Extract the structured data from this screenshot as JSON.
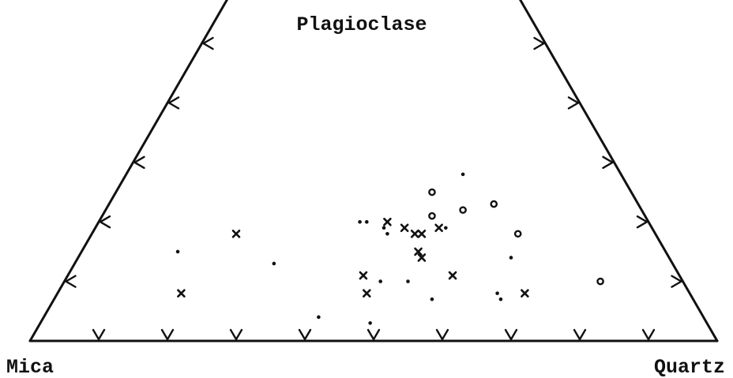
{
  "chart_data": {
    "type": "scatter",
    "subtype": "ternary-truncated",
    "vertex_labels": {
      "top": "Plagioclase",
      "bottom_left": "Mica",
      "bottom_right": "Quartz"
    },
    "apex_truncated": true,
    "ticks_per_edge": {
      "bottom": 9,
      "left": 6,
      "right": 6
    },
    "tick_style": "arrowhead",
    "grid": false,
    "legend": "none",
    "axis_range_fraction": [
      0,
      1
    ],
    "top_fraction_shown": 0.6,
    "note_units": "points given as fractions (plagioclase, quartz) of the full ternary",
    "series": [
      {
        "marker": "x",
        "points": [
          {
            "plag": 0.18,
            "quartz": 0.21
          },
          {
            "plag": 0.08,
            "quartz": 0.18
          },
          {
            "plag": 0.2,
            "quartz": 0.42
          },
          {
            "plag": 0.19,
            "quartz": 0.45
          },
          {
            "plag": 0.18,
            "quartz": 0.47
          },
          {
            "plag": 0.18,
            "quartz": 0.48
          },
          {
            "plag": 0.19,
            "quartz": 0.5
          },
          {
            "plag": 0.15,
            "quartz": 0.49
          },
          {
            "plag": 0.14,
            "quartz": 0.5
          },
          {
            "plag": 0.11,
            "quartz": 0.43
          },
          {
            "plag": 0.08,
            "quartz": 0.45
          },
          {
            "plag": 0.11,
            "quartz": 0.56
          },
          {
            "plag": 0.08,
            "quartz": 0.68
          }
        ]
      },
      {
        "marker": "dot",
        "points": [
          {
            "plag": 0.15,
            "quartz": 0.14
          },
          {
            "plag": 0.13,
            "quartz": 0.29
          },
          {
            "plag": 0.2,
            "quartz": 0.38
          },
          {
            "plag": 0.2,
            "quartz": 0.39
          },
          {
            "plag": 0.19,
            "quartz": 0.42
          },
          {
            "plag": 0.18,
            "quartz": 0.43
          },
          {
            "plag": 0.19,
            "quartz": 0.51
          },
          {
            "plag": 0.1,
            "quartz": 0.46
          },
          {
            "plag": 0.1,
            "quartz": 0.5
          },
          {
            "plag": 0.04,
            "quartz": 0.4
          },
          {
            "plag": 0.03,
            "quartz": 0.48
          },
          {
            "plag": 0.07,
            "quartz": 0.55
          },
          {
            "plag": 0.28,
            "quartz": 0.49
          },
          {
            "plag": 0.14,
            "quartz": 0.63
          },
          {
            "plag": 0.08,
            "quartz": 0.64
          },
          {
            "plag": 0.07,
            "quartz": 0.65
          }
        ]
      },
      {
        "marker": "circle",
        "points": [
          {
            "plag": 0.25,
            "quartz": 0.46
          },
          {
            "plag": 0.21,
            "quartz": 0.48
          },
          {
            "plag": 0.22,
            "quartz": 0.52
          },
          {
            "plag": 0.23,
            "quartz": 0.56
          },
          {
            "plag": 0.18,
            "quartz": 0.62
          },
          {
            "plag": 0.1,
            "quartz": 0.78
          }
        ]
      }
    ]
  }
}
